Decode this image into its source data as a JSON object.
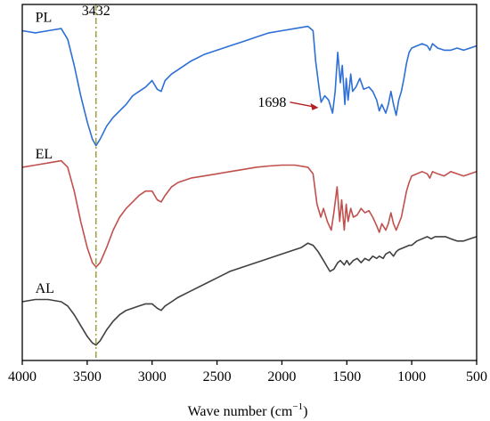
{
  "chart_data": {
    "type": "line",
    "xlabel": "Wave number (cm",
    "xlabel_sup": "−1",
    "xlabel_end": ")",
    "xlim": [
      4000,
      500
    ],
    "x_ticks": [
      4000,
      3500,
      3000,
      2500,
      2000,
      1500,
      1000,
      500
    ],
    "x_tick_labels": [
      "4000",
      "3500",
      "3000",
      "2500",
      "2000",
      "1500",
      "1000",
      "500"
    ],
    "y_ticks_shown": false,
    "grid": false,
    "reference_line": {
      "x": 3432,
      "label": "3432",
      "color": "#9a9a2e"
    },
    "annotation": {
      "text": "1698",
      "x": 1698,
      "series": "PL",
      "arrow_color": "#b22222"
    },
    "series": [
      {
        "name": "PL",
        "color": "#2e6fd6",
        "label_x": 3900,
        "points": [
          [
            4000,
            0.66
          ],
          [
            3900,
            0.655
          ],
          [
            3800,
            0.66
          ],
          [
            3700,
            0.665
          ],
          [
            3650,
            0.64
          ],
          [
            3600,
            0.58
          ],
          [
            3550,
            0.51
          ],
          [
            3500,
            0.45
          ],
          [
            3460,
            0.41
          ],
          [
            3432,
            0.395
          ],
          [
            3400,
            0.41
          ],
          [
            3350,
            0.44
          ],
          [
            3300,
            0.46
          ],
          [
            3250,
            0.475
          ],
          [
            3200,
            0.49
          ],
          [
            3150,
            0.51
          ],
          [
            3100,
            0.52
          ],
          [
            3050,
            0.53
          ],
          [
            3000,
            0.545
          ],
          [
            2960,
            0.525
          ],
          [
            2930,
            0.52
          ],
          [
            2900,
            0.545
          ],
          [
            2850,
            0.56
          ],
          [
            2800,
            0.57
          ],
          [
            2700,
            0.59
          ],
          [
            2600,
            0.605
          ],
          [
            2500,
            0.615
          ],
          [
            2400,
            0.625
          ],
          [
            2300,
            0.635
          ],
          [
            2200,
            0.645
          ],
          [
            2100,
            0.655
          ],
          [
            2000,
            0.66
          ],
          [
            1900,
            0.665
          ],
          [
            1800,
            0.67
          ],
          [
            1760,
            0.66
          ],
          [
            1740,
            0.59
          ],
          [
            1715,
            0.53
          ],
          [
            1698,
            0.495
          ],
          [
            1670,
            0.51
          ],
          [
            1640,
            0.5
          ],
          [
            1610,
            0.47
          ],
          [
            1590,
            0.52
          ],
          [
            1570,
            0.61
          ],
          [
            1550,
            0.54
          ],
          [
            1535,
            0.58
          ],
          [
            1515,
            0.49
          ],
          [
            1505,
            0.55
          ],
          [
            1490,
            0.5
          ],
          [
            1470,
            0.56
          ],
          [
            1455,
            0.52
          ],
          [
            1430,
            0.53
          ],
          [
            1400,
            0.55
          ],
          [
            1370,
            0.525
          ],
          [
            1330,
            0.53
          ],
          [
            1300,
            0.52
          ],
          [
            1270,
            0.5
          ],
          [
            1250,
            0.475
          ],
          [
            1230,
            0.49
          ],
          [
            1200,
            0.47
          ],
          [
            1180,
            0.49
          ],
          [
            1160,
            0.52
          ],
          [
            1140,
            0.49
          ],
          [
            1120,
            0.465
          ],
          [
            1100,
            0.5
          ],
          [
            1080,
            0.52
          ],
          [
            1060,
            0.55
          ],
          [
            1040,
            0.585
          ],
          [
            1020,
            0.61
          ],
          [
            1000,
            0.62
          ],
          [
            960,
            0.625
          ],
          [
            920,
            0.63
          ],
          [
            880,
            0.625
          ],
          [
            860,
            0.615
          ],
          [
            840,
            0.63
          ],
          [
            800,
            0.62
          ],
          [
            750,
            0.615
          ],
          [
            700,
            0.615
          ],
          [
            650,
            0.62
          ],
          [
            600,
            0.615
          ],
          [
            550,
            0.62
          ],
          [
            500,
            0.625
          ]
        ]
      },
      {
        "name": "EL",
        "color": "#c0504d",
        "label_x": 3900,
        "points": [
          [
            4000,
            0.345
          ],
          [
            3900,
            0.35
          ],
          [
            3800,
            0.355
          ],
          [
            3700,
            0.36
          ],
          [
            3650,
            0.345
          ],
          [
            3600,
            0.29
          ],
          [
            3550,
            0.22
          ],
          [
            3500,
            0.16
          ],
          [
            3460,
            0.125
          ],
          [
            3432,
            0.115
          ],
          [
            3400,
            0.125
          ],
          [
            3350,
            0.16
          ],
          [
            3300,
            0.2
          ],
          [
            3250,
            0.23
          ],
          [
            3200,
            0.25
          ],
          [
            3150,
            0.265
          ],
          [
            3100,
            0.28
          ],
          [
            3050,
            0.29
          ],
          [
            3000,
            0.29
          ],
          [
            2960,
            0.27
          ],
          [
            2930,
            0.265
          ],
          [
            2900,
            0.28
          ],
          [
            2850,
            0.3
          ],
          [
            2800,
            0.31
          ],
          [
            2700,
            0.32
          ],
          [
            2600,
            0.325
          ],
          [
            2500,
            0.33
          ],
          [
            2400,
            0.335
          ],
          [
            2300,
            0.34
          ],
          [
            2200,
            0.345
          ],
          [
            2100,
            0.348
          ],
          [
            2000,
            0.35
          ],
          [
            1900,
            0.35
          ],
          [
            1800,
            0.345
          ],
          [
            1760,
            0.33
          ],
          [
            1730,
            0.26
          ],
          [
            1700,
            0.23
          ],
          [
            1680,
            0.25
          ],
          [
            1650,
            0.22
          ],
          [
            1620,
            0.2
          ],
          [
            1600,
            0.24
          ],
          [
            1575,
            0.3
          ],
          [
            1555,
            0.22
          ],
          [
            1540,
            0.27
          ],
          [
            1520,
            0.2
          ],
          [
            1505,
            0.26
          ],
          [
            1490,
            0.22
          ],
          [
            1470,
            0.25
          ],
          [
            1450,
            0.23
          ],
          [
            1420,
            0.235
          ],
          [
            1390,
            0.25
          ],
          [
            1360,
            0.24
          ],
          [
            1330,
            0.245
          ],
          [
            1300,
            0.23
          ],
          [
            1270,
            0.21
          ],
          [
            1250,
            0.195
          ],
          [
            1230,
            0.215
          ],
          [
            1200,
            0.2
          ],
          [
            1180,
            0.215
          ],
          [
            1160,
            0.24
          ],
          [
            1140,
            0.215
          ],
          [
            1120,
            0.2
          ],
          [
            1100,
            0.215
          ],
          [
            1080,
            0.23
          ],
          [
            1060,
            0.26
          ],
          [
            1040,
            0.29
          ],
          [
            1020,
            0.31
          ],
          [
            1000,
            0.325
          ],
          [
            960,
            0.33
          ],
          [
            920,
            0.335
          ],
          [
            880,
            0.33
          ],
          [
            860,
            0.32
          ],
          [
            840,
            0.335
          ],
          [
            800,
            0.33
          ],
          [
            750,
            0.325
          ],
          [
            700,
            0.335
          ],
          [
            650,
            0.33
          ],
          [
            600,
            0.325
          ],
          [
            550,
            0.33
          ],
          [
            500,
            0.335
          ]
        ]
      },
      {
        "name": "AL",
        "color": "#404040",
        "label_x": 3900,
        "points": [
          [
            4000,
            0.035
          ],
          [
            3900,
            0.04
          ],
          [
            3800,
            0.04
          ],
          [
            3700,
            0.035
          ],
          [
            3650,
            0.025
          ],
          [
            3600,
            0.005
          ],
          [
            3550,
            -0.02
          ],
          [
            3500,
            -0.045
          ],
          [
            3460,
            -0.06
          ],
          [
            3432,
            -0.065
          ],
          [
            3400,
            -0.055
          ],
          [
            3350,
            -0.03
          ],
          [
            3300,
            -0.01
          ],
          [
            3250,
            0.005
          ],
          [
            3200,
            0.015
          ],
          [
            3150,
            0.02
          ],
          [
            3100,
            0.025
          ],
          [
            3050,
            0.03
          ],
          [
            3000,
            0.03
          ],
          [
            2960,
            0.02
          ],
          [
            2930,
            0.015
          ],
          [
            2900,
            0.025
          ],
          [
            2850,
            0.035
          ],
          [
            2800,
            0.045
          ],
          [
            2700,
            0.06
          ],
          [
            2600,
            0.075
          ],
          [
            2500,
            0.09
          ],
          [
            2400,
            0.105
          ],
          [
            2300,
            0.115
          ],
          [
            2200,
            0.125
          ],
          [
            2100,
            0.135
          ],
          [
            2000,
            0.145
          ],
          [
            1900,
            0.155
          ],
          [
            1850,
            0.16
          ],
          [
            1800,
            0.17
          ],
          [
            1760,
            0.165
          ],
          [
            1720,
            0.15
          ],
          [
            1680,
            0.13
          ],
          [
            1650,
            0.115
          ],
          [
            1630,
            0.105
          ],
          [
            1600,
            0.11
          ],
          [
            1570,
            0.125
          ],
          [
            1550,
            0.13
          ],
          [
            1520,
            0.12
          ],
          [
            1500,
            0.13
          ],
          [
            1480,
            0.12
          ],
          [
            1450,
            0.13
          ],
          [
            1420,
            0.135
          ],
          [
            1390,
            0.125
          ],
          [
            1360,
            0.135
          ],
          [
            1330,
            0.13
          ],
          [
            1300,
            0.14
          ],
          [
            1270,
            0.135
          ],
          [
            1250,
            0.14
          ],
          [
            1220,
            0.135
          ],
          [
            1200,
            0.145
          ],
          [
            1170,
            0.15
          ],
          [
            1140,
            0.14
          ],
          [
            1120,
            0.15
          ],
          [
            1100,
            0.155
          ],
          [
            1060,
            0.16
          ],
          [
            1020,
            0.165
          ],
          [
            1000,
            0.165
          ],
          [
            960,
            0.175
          ],
          [
            920,
            0.18
          ],
          [
            880,
            0.185
          ],
          [
            850,
            0.18
          ],
          [
            820,
            0.185
          ],
          [
            780,
            0.185
          ],
          [
            740,
            0.185
          ],
          [
            700,
            0.18
          ],
          [
            650,
            0.175
          ],
          [
            600,
            0.175
          ],
          [
            550,
            0.18
          ],
          [
            500,
            0.185
          ]
        ]
      }
    ]
  }
}
